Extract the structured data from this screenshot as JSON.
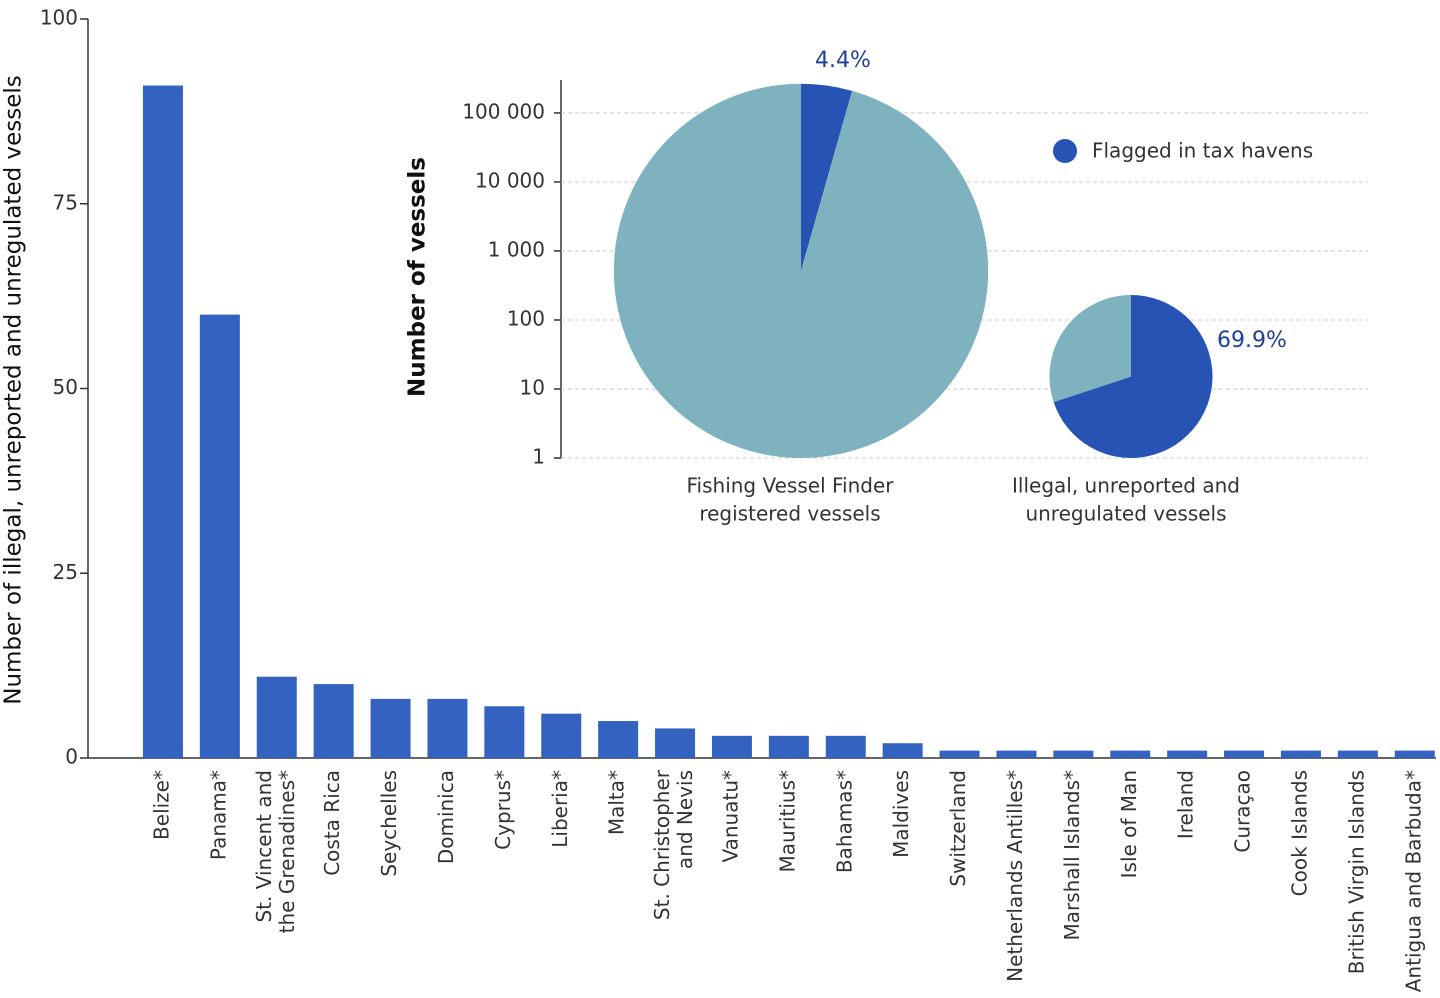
{
  "chart_data": [
    {
      "type": "bar",
      "ylabel": "Number of illegal, unreported and unregulated vessels",
      "categories": [
        "Belize*",
        "Panama*",
        [
          "St. Vincent and",
          "the Grenadines*"
        ],
        "Costa Rica",
        "Seychelles",
        "Dominica",
        "Cyprus*",
        "Liberia*",
        "Malta*",
        [
          "St. Christopher",
          "and Nevis"
        ],
        "Vanuatu*",
        "Mauritius*",
        "Bahamas*",
        "Maldives",
        "Switzerland",
        "Netherlands Antilles*",
        "Marshall Islands*",
        "Isle of Man",
        "Ireland",
        "Curaçao",
        "Cook Islands",
        "British Virgin Islands",
        "Antigua and Barbuda*"
      ],
      "values": [
        91,
        60,
        11,
        10,
        8,
        8,
        7,
        6,
        5,
        4,
        3,
        3,
        3,
        2,
        1,
        1,
        1,
        1,
        1,
        1,
        1,
        1,
        1
      ],
      "color": "#3462c0",
      "ylim": [
        0,
        100
      ],
      "yticks": [
        0,
        25,
        50,
        75,
        100
      ]
    },
    {
      "type": "pie",
      "ylabel": "Number of vessels",
      "log": true,
      "grid": true,
      "ylim": [
        1,
        300000
      ],
      "yticks": [
        1,
        10,
        100,
        {
          "value": 1000,
          "label": "1 000"
        },
        {
          "value": 10000,
          "label": "10 000"
        },
        {
          "value": 100000,
          "label": "100 000"
        }
      ],
      "legend": {
        "name": "Flagged in tax havens",
        "color": "#2653b4"
      },
      "pies": [
        {
          "label": [
            "Fishing Vessel Finder",
            "registered vessels"
          ],
          "total": 265000,
          "values": [
            4.4,
            95.6
          ],
          "value_labels": [
            "4.4%",
            null
          ],
          "colors": [
            "#2653b4",
            "#7fb2bf"
          ]
        },
        {
          "label": [
            "Illegal, unreported and",
            "unregulated vessels"
          ],
          "total": 230,
          "values": [
            69.9,
            30.1
          ],
          "value_labels": [
            "69.9%",
            null
          ],
          "colors": [
            "#2653b4",
            "#7fb2bf"
          ]
        }
      ]
    }
  ]
}
